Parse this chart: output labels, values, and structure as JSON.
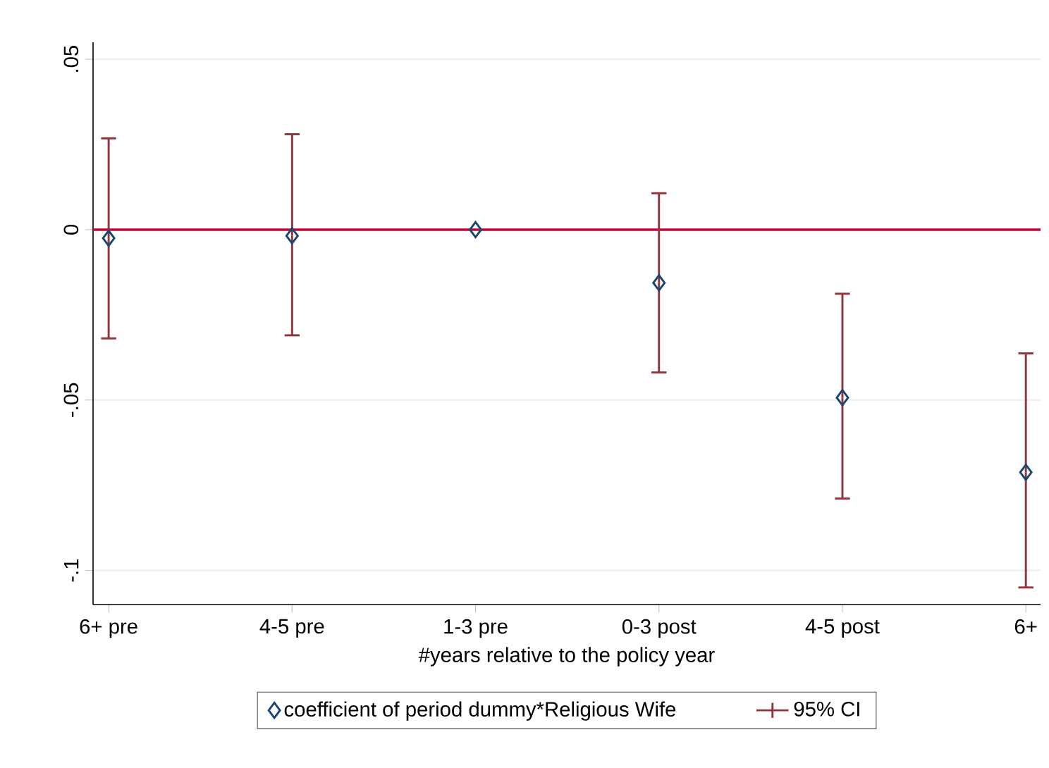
{
  "chart_data": {
    "type": "scatter",
    "xlabel": "#years relative to the policy year",
    "categories": [
      "6+ pre",
      "4-5 pre",
      "1-3 pre",
      "0-3 post",
      "4-5 post",
      "6+"
    ],
    "series": [
      {
        "name": "coefficient of period dummy*Religious Wife",
        "color": "#1a476f",
        "values": [
          -0.0025,
          -0.0018,
          0,
          -0.0156,
          -0.0493,
          -0.0712
        ],
        "errors": [
          [
            -0.0319,
            0.0268
          ],
          [
            -0.031,
            0.028
          ],
          null,
          [
            -0.0419,
            0.0107
          ],
          [
            -0.0789,
            -0.0188
          ],
          [
            -0.105,
            -0.0363
          ]
        ]
      }
    ],
    "annotations": [
      "95% CI"
    ],
    "ylim": [
      -0.11,
      0.055
    ],
    "yticks": [
      {
        "value": 0.05,
        "label": ".05"
      },
      0,
      {
        "value": -0.05,
        "label": "-.05"
      },
      {
        "value": -0.1,
        "label": "-.1"
      }
    ],
    "ref_lines": [
      {
        "axis": "y",
        "value": 0,
        "color": "#c10534"
      }
    ],
    "grid": "y",
    "legend": "bottom",
    "marker": "diamond"
  }
}
